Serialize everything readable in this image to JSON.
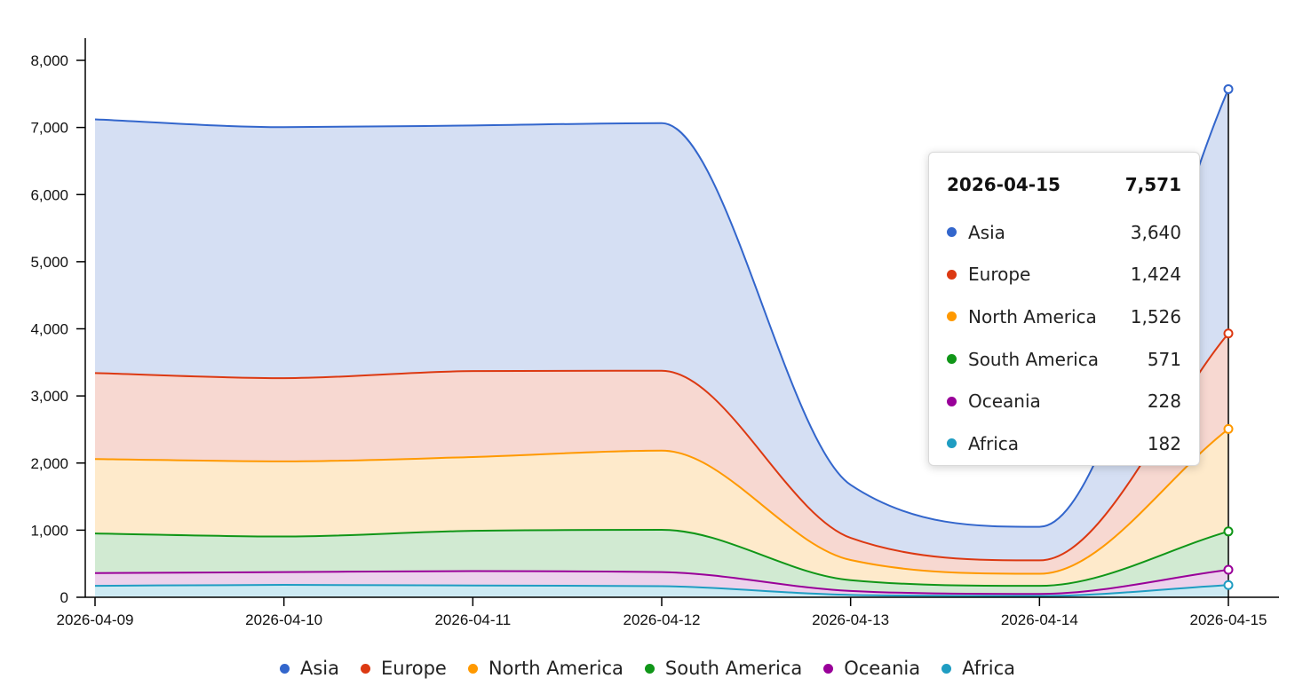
{
  "chart_data": {
    "type": "area",
    "stacked": true,
    "x": [
      "2026-04-09",
      "2026-04-10",
      "2026-04-11",
      "2026-04-12",
      "2026-04-13",
      "2026-04-14",
      "2026-04-15"
    ],
    "series": [
      {
        "name": "Africa",
        "color": "#1f9dc2",
        "fill": "#cdeaf3",
        "values": [
          170,
          185,
          175,
          165,
          35,
          20,
          182
        ]
      },
      {
        "name": "Oceania",
        "color": "#990099",
        "fill": "#ecd2ec",
        "values": [
          190,
          190,
          215,
          210,
          60,
          30,
          228
        ]
      },
      {
        "name": "South America",
        "color": "#109618",
        "fill": "#d1ead2",
        "values": [
          590,
          530,
          600,
          630,
          160,
          120,
          571
        ]
      },
      {
        "name": "North America",
        "color": "#ff9900",
        "fill": "#feeacb",
        "values": [
          1110,
          1120,
          1100,
          1180,
          300,
          180,
          1526
        ]
      },
      {
        "name": "Europe",
        "color": "#dc3912",
        "fill": "#f7d8d1",
        "values": [
          1280,
          1240,
          1280,
          1190,
          330,
          200,
          1424
        ]
      },
      {
        "name": "Asia",
        "color": "#3366cc",
        "fill": "#d5dff3",
        "values": [
          3780,
          3740,
          3660,
          3690,
          790,
          500,
          3640
        ]
      }
    ],
    "ylim": [
      0,
      8300
    ],
    "yticks": [
      0,
      1000,
      2000,
      3000,
      4000,
      5000,
      6000,
      7000,
      8000
    ],
    "ytick_labels": [
      "0",
      "1,000",
      "2,000",
      "3,000",
      "4,000",
      "5,000",
      "6,000",
      "7,000",
      "8,000"
    ],
    "title": "",
    "xlabel": "",
    "ylabel": "",
    "grid": false,
    "legend_position": "bottom",
    "tooltip": {
      "date": "2026-04-15",
      "total": "7,571",
      "rows": [
        {
          "name": "Asia",
          "value": "3,640",
          "color": "#3366cc"
        },
        {
          "name": "Europe",
          "value": "1,424",
          "color": "#dc3912"
        },
        {
          "name": "North America",
          "value": "1,526",
          "color": "#ff9900"
        },
        {
          "name": "South America",
          "value": "571",
          "color": "#109618"
        },
        {
          "name": "Oceania",
          "value": "228",
          "color": "#990099"
        },
        {
          "name": "Africa",
          "value": "182",
          "color": "#1f9dc2"
        }
      ]
    },
    "legend": [
      {
        "name": "Asia",
        "color": "#3366cc"
      },
      {
        "name": "Europe",
        "color": "#dc3912"
      },
      {
        "name": "North America",
        "color": "#ff9900"
      },
      {
        "name": "South America",
        "color": "#109618"
      },
      {
        "name": "Oceania",
        "color": "#990099"
      },
      {
        "name": "Africa",
        "color": "#1f9dc2"
      }
    ]
  }
}
